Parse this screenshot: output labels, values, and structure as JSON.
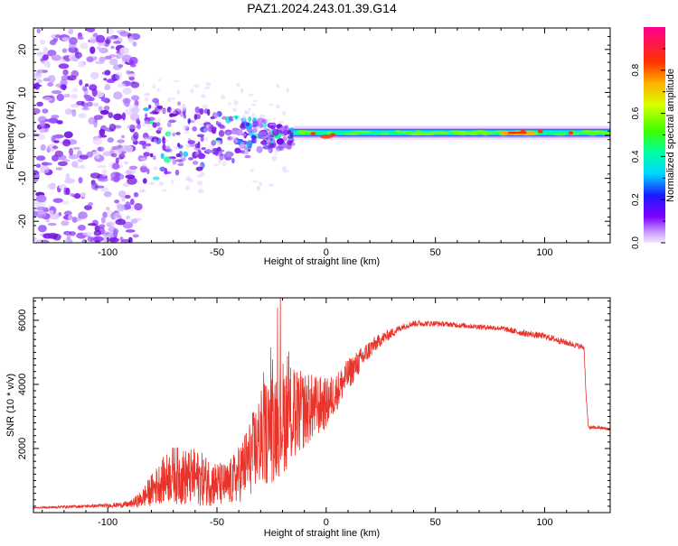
{
  "title": "PAZ1.2024.243.01.39.G14",
  "colorbar": {
    "label": "Normalized spectral amplitude",
    "ticks": [
      "0.0",
      "0.2",
      "0.4",
      "0.6",
      "0.8"
    ],
    "tick_values": [
      0.0,
      0.2,
      0.4,
      0.6,
      0.8
    ]
  },
  "chart_data": [
    {
      "type": "heatmap",
      "title": "",
      "xlabel": "Height of straight line (km)",
      "ylabel": "Frequency (Hz)",
      "xlim": [
        -134,
        130
      ],
      "ylim": [
        -25,
        25
      ],
      "xticks": [
        -100,
        -50,
        0,
        50,
        100
      ],
      "yticks": [
        -20,
        -10,
        0,
        10,
        20
      ],
      "zlim": [
        0,
        1
      ],
      "description_points": {
        "noise_region_x": [
          -134,
          -86
        ],
        "scatter_region_x": [
          -86,
          -15
        ],
        "band_region_x": [
          -15,
          130
        ],
        "band_frequency": 0.6,
        "band_peak_x": [
          80,
          95
        ]
      }
    },
    {
      "type": "line",
      "title": "",
      "xlabel": "Height of straight line (km)",
      "ylabel": "SNR (10 * v/v)",
      "xlim": [
        -134,
        130
      ],
      "ylim": [
        0,
        6700
      ],
      "xticks": [
        -100,
        -50,
        0,
        50,
        100
      ],
      "yticks": [
        2000,
        4000,
        6000
      ],
      "series": [
        {
          "color": "#e8342a",
          "x": [
            -134,
            -120,
            -100,
            -90,
            -85,
            -80,
            -75,
            -70,
            -65,
            -60,
            -55,
            -50,
            -45,
            -40,
            -35,
            -30,
            -25,
            -20,
            -15,
            -10,
            -5,
            0,
            5,
            10,
            15,
            20,
            25,
            30,
            35,
            40,
            50,
            60,
            70,
            80,
            90,
            100,
            110,
            118,
            119,
            120,
            125,
            130
          ],
          "y": [
            150,
            180,
            220,
            260,
            400,
            700,
            1000,
            1200,
            1100,
            1100,
            1000,
            900,
            850,
            1200,
            1700,
            2300,
            2700,
            3000,
            3000,
            3200,
            3300,
            3400,
            3800,
            4300,
            4700,
            5100,
            5400,
            5600,
            5800,
            5900,
            5900,
            5850,
            5800,
            5750,
            5600,
            5500,
            5300,
            5150,
            3600,
            2650,
            2650,
            2600
          ],
          "amplitude": [
            20,
            40,
            60,
            100,
            250,
            500,
            700,
            900,
            900,
            900,
            800,
            700,
            700,
            900,
            1200,
            1500,
            1800,
            1800,
            1500,
            1200,
            1000,
            800,
            600,
            500,
            400,
            300,
            200,
            150,
            100,
            100,
            80,
            80,
            80,
            80,
            100,
            100,
            100,
            80,
            80,
            50,
            50,
            50
          ]
        }
      ]
    }
  ]
}
